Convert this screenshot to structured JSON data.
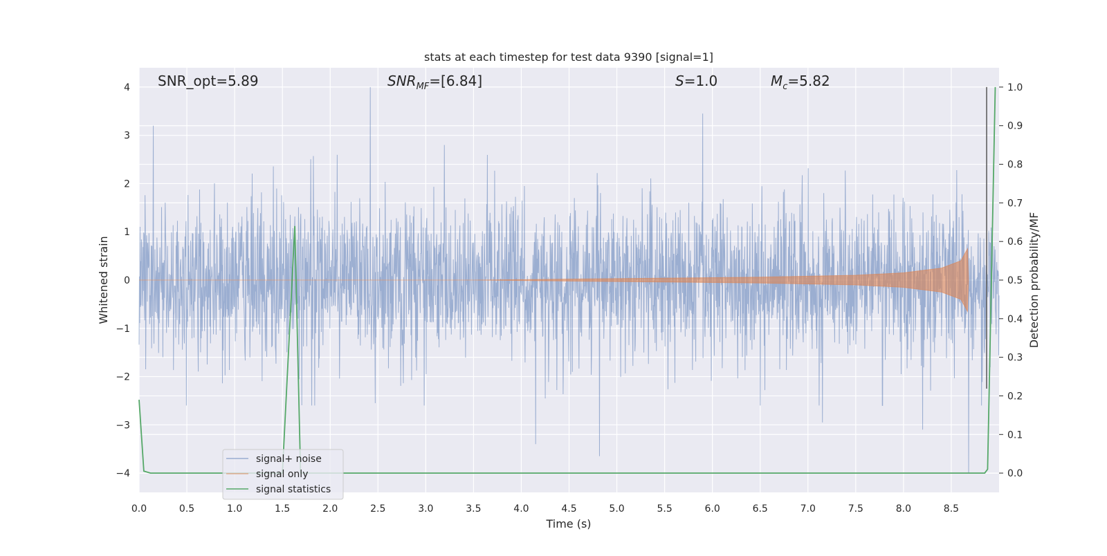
{
  "chart_data": {
    "type": "line",
    "title": "stats at each timestep for test data 9390 [signal=1]",
    "xlabel": "Time (s)",
    "ylabel": "Whitened strain",
    "ylabel_right": "Detection probability/MF",
    "xlim": [
      0,
      9.0
    ],
    "ylim": [
      -4.4,
      4.4
    ],
    "ylim_right": [
      -0.05,
      1.05
    ],
    "x_ticks": [
      "0.0",
      "0.5",
      "1.0",
      "1.5",
      "2.0",
      "2.5",
      "3.0",
      "3.5",
      "4.0",
      "4.5",
      "5.0",
      "5.5",
      "6.0",
      "6.5",
      "7.0",
      "7.5",
      "8.0",
      "8.5"
    ],
    "y_ticks": [
      "4",
      "3",
      "2",
      "1",
      "0",
      "−1",
      "−2",
      "−3",
      "−4"
    ],
    "y_ticks_right": [
      "1.0",
      "0.9",
      "0.8",
      "0.7",
      "0.6",
      "0.5",
      "0.4",
      "0.3",
      "0.2",
      "0.1",
      "0.0"
    ],
    "grid": true,
    "legend_position": "lower-left",
    "annotations": {
      "snr_opt": "SNR_opt=5.89",
      "snr_mf_main": "SNR",
      "snr_mf_sub": "MF",
      "snr_mf_value": "=[6.84]",
      "s_main": "S",
      "s_value": "=1.0",
      "mc_main": "M",
      "mc_sub": "c",
      "mc_value": "=5.82"
    },
    "series": [
      {
        "name": "signal+ noise",
        "color": "#4c72b0",
        "axis": "left",
        "description_values": "noise band roughly ±1.6 with spikes",
        "peaks": [
          [
            0.15,
            3.2
          ],
          [
            2.42,
            4.0
          ],
          [
            5.9,
            3.45
          ],
          [
            4.82,
            -3.65
          ],
          [
            4.15,
            -3.4
          ],
          [
            8.68,
            -4.0
          ],
          [
            8.2,
            -3.1
          ],
          [
            7.15,
            -2.95
          ]
        ]
      },
      {
        "name": "signal only",
        "color": "#dd8452",
        "axis": "left",
        "envelope": [
          [
            3.5,
            0.0
          ],
          [
            5.0,
            0.03
          ],
          [
            6.5,
            0.06
          ],
          [
            7.5,
            0.1
          ],
          [
            8.0,
            0.15
          ],
          [
            8.4,
            0.25
          ],
          [
            8.6,
            0.4
          ],
          [
            8.67,
            0.65
          ],
          [
            8.68,
            0.0
          ]
        ]
      },
      {
        "name": "signal statistics",
        "color": "#55a868",
        "axis": "right",
        "x": [
          0.0,
          0.05,
          0.12,
          1.5,
          1.63,
          1.69,
          8.85,
          8.88,
          8.96
        ],
        "y": [
          0.19,
          0.005,
          0.0,
          0.0,
          0.64,
          0.0,
          0.0,
          0.01,
          1.0
        ]
      }
    ],
    "vertical_marker": {
      "x": 8.87,
      "color": "#555555"
    }
  }
}
